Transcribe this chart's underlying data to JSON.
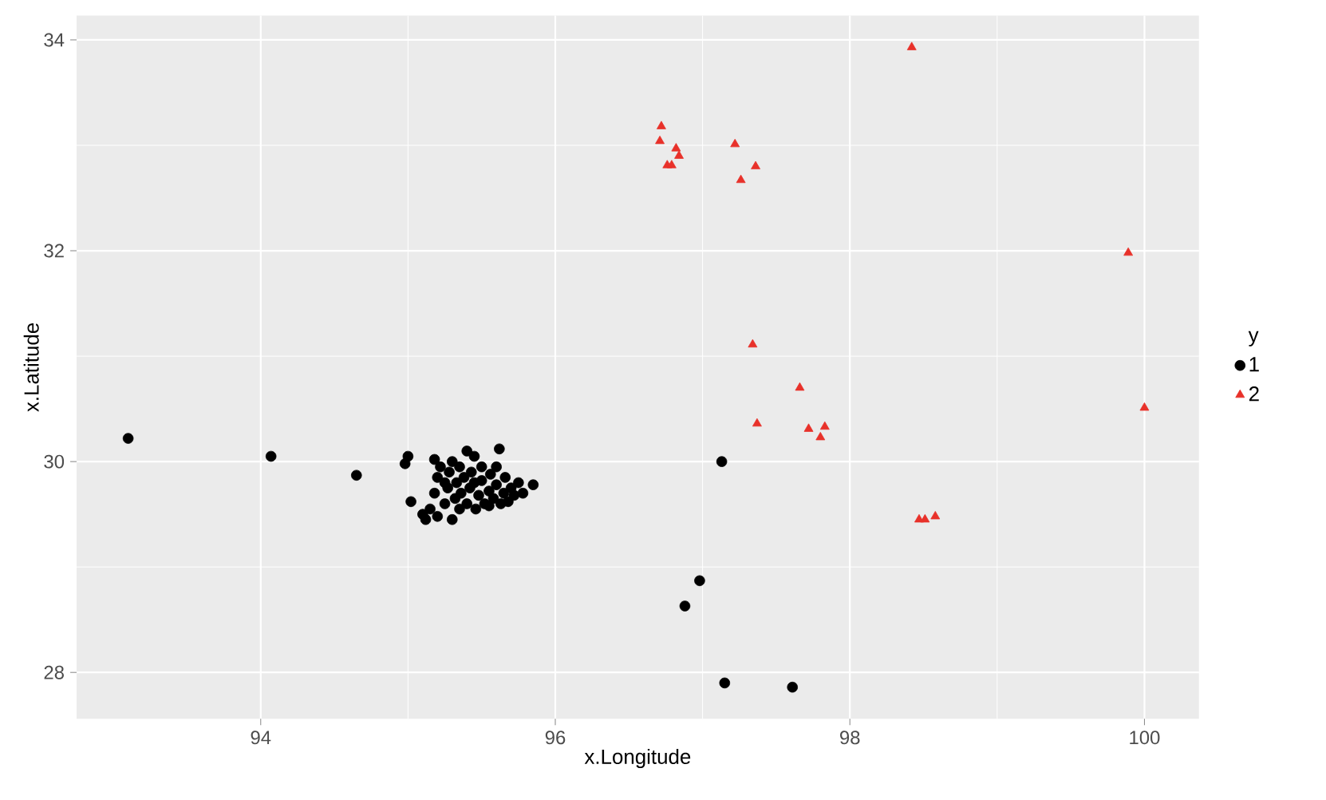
{
  "chart_data": {
    "type": "scatter",
    "xlabel": "x.Longitude",
    "ylabel": "x.Latitude",
    "legend_title": "y",
    "xlim": [
      92.75,
      100.37
    ],
    "ylim": [
      27.56,
      34.23
    ],
    "xticks": [
      94,
      96,
      98,
      100
    ],
    "yticks": [
      28,
      30,
      32,
      34
    ],
    "grid": true,
    "legend": "right",
    "series": [
      {
        "name": "1",
        "color": "#000000",
        "marker": "circle",
        "x": [
          93.1,
          94.07,
          94.65,
          96.98,
          96.88,
          97.15,
          97.61,
          97.13,
          95.0,
          94.98,
          95.02,
          95.1,
          95.12,
          95.15,
          95.2,
          95.18,
          95.2,
          95.22,
          95.25,
          95.27,
          95.28,
          95.3,
          95.3,
          95.32,
          95.33,
          95.35,
          95.36,
          95.38,
          95.4,
          95.4,
          95.42,
          95.43,
          95.45,
          95.46,
          95.48,
          95.5,
          95.5,
          95.52,
          95.55,
          95.56,
          95.58,
          95.6,
          95.6,
          95.62,
          95.63,
          95.65,
          95.66,
          95.68,
          95.7,
          95.72,
          95.75,
          95.78,
          95.85,
          95.25,
          95.35,
          95.45,
          95.55,
          95.18
        ],
        "values": [
          30.22,
          30.05,
          29.87,
          28.87,
          28.63,
          27.9,
          27.86,
          30.0,
          30.05,
          29.98,
          29.62,
          29.5,
          29.45,
          29.55,
          29.48,
          29.7,
          29.85,
          29.95,
          29.6,
          29.75,
          29.9,
          30.0,
          29.45,
          29.65,
          29.8,
          29.95,
          29.7,
          29.85,
          30.1,
          29.6,
          29.75,
          29.9,
          30.05,
          29.55,
          29.68,
          29.82,
          29.95,
          29.6,
          29.72,
          29.88,
          29.65,
          29.78,
          29.95,
          30.12,
          29.6,
          29.7,
          29.85,
          29.62,
          29.75,
          29.68,
          29.8,
          29.7,
          29.78,
          29.8,
          29.55,
          29.8,
          29.58,
          30.02
        ]
      },
      {
        "name": "2",
        "color": "#e8312a",
        "marker": "triangle",
        "x": [
          98.42,
          96.72,
          96.71,
          96.82,
          96.84,
          96.76,
          96.79,
          97.22,
          97.36,
          97.26,
          99.89,
          97.34,
          97.66,
          97.37,
          97.72,
          97.83,
          97.8,
          100.0,
          98.47,
          98.51,
          98.58
        ],
        "values": [
          33.93,
          33.18,
          33.04,
          32.97,
          32.9,
          32.81,
          32.81,
          33.01,
          32.8,
          32.67,
          31.98,
          31.11,
          30.7,
          30.36,
          30.31,
          30.33,
          30.23,
          30.51,
          29.45,
          29.45,
          29.48
        ]
      }
    ]
  }
}
